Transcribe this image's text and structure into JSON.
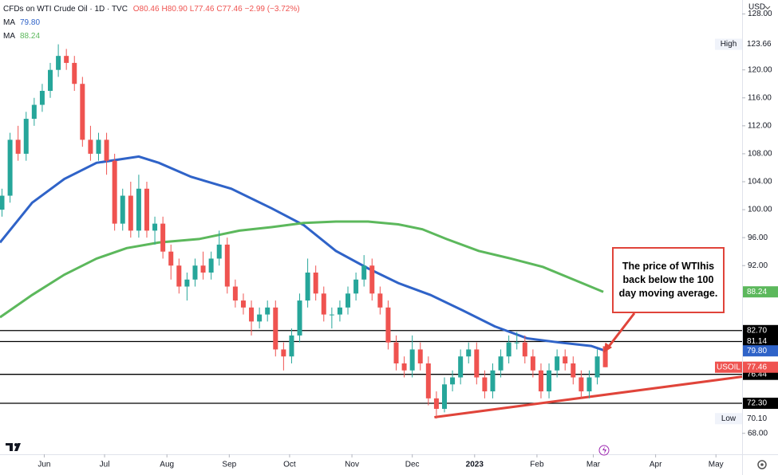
{
  "chart_data": {
    "type": "candlestick",
    "title": "CFDs on WTI Crude Oil · 1D · TVC",
    "ohlc_header": [
      "O80.46",
      "H80.90",
      "L77.46",
      "C77.46",
      "−2.99 (−3.72%)"
    ],
    "currency": "USD",
    "xlim": [
      0,
      369
    ],
    "ylim": [
      65,
      130
    ],
    "xticks": [
      {
        "value": 22,
        "label": "Jun"
      },
      {
        "value": 52,
        "label": "Jul"
      },
      {
        "value": 83,
        "label": "Aug"
      },
      {
        "value": 114,
        "label": "Sep"
      },
      {
        "value": 144,
        "label": "Oct"
      },
      {
        "value": 175,
        "label": "Nov"
      },
      {
        "value": 205,
        "label": "Dec"
      },
      {
        "value": 236,
        "label": "2023"
      },
      {
        "value": 267,
        "label": "Feb"
      },
      {
        "value": 295,
        "label": "Mar"
      },
      {
        "value": 326,
        "label": "Apr"
      },
      {
        "value": 356,
        "label": "May"
      }
    ],
    "yticks": [
      {
        "value": 68,
        "label": "68.00"
      },
      {
        "value": 92,
        "label": "92.00"
      },
      {
        "value": 96,
        "label": "96.00"
      },
      {
        "value": 100,
        "label": "100.00"
      },
      {
        "value": 104,
        "label": "104.00"
      },
      {
        "value": 108,
        "label": "108.00"
      },
      {
        "value": 112,
        "label": "112.00"
      },
      {
        "value": 116,
        "label": "116.00"
      },
      {
        "value": 120,
        "label": "120.00"
      },
      {
        "value": 128,
        "label": "128.00"
      }
    ],
    "up_color": "#26a69a",
    "down_color": "#ef5350",
    "candles": {
      "x": [
        1,
        5,
        9,
        13,
        17,
        21,
        25,
        29,
        33,
        37,
        41,
        45,
        49,
        53,
        57,
        61,
        65,
        69,
        73,
        77,
        81,
        85,
        89,
        93,
        97,
        101,
        105,
        109,
        113,
        117,
        121,
        125,
        129,
        133,
        137,
        141,
        145,
        149,
        153,
        157,
        161,
        165,
        169,
        173,
        177,
        181,
        185,
        189,
        193,
        197,
        201,
        205,
        209,
        213,
        217,
        221,
        225,
        229,
        233,
        237,
        241,
        245,
        249,
        253,
        257,
        261,
        265,
        269,
        273,
        277,
        281,
        285,
        289,
        293,
        297,
        301
      ],
      "open": [
        100,
        102,
        110,
        108,
        113,
        115,
        117,
        120,
        122,
        121,
        118,
        110,
        108,
        110,
        107,
        98,
        102,
        97,
        103,
        97,
        98,
        94,
        92,
        89,
        90,
        92,
        91,
        93,
        95,
        89,
        87,
        86,
        84,
        85,
        86,
        80,
        79,
        82,
        87,
        91,
        88,
        85,
        85,
        86,
        88,
        90,
        92,
        88,
        86,
        81,
        78,
        77,
        80,
        78,
        73,
        71.5,
        75,
        76,
        79,
        80,
        76,
        74,
        77,
        79,
        81,
        81,
        79,
        77,
        74,
        77,
        79,
        78,
        76,
        74,
        76,
        80.46
      ],
      "high": [
        103,
        111,
        112,
        114,
        116,
        118,
        121,
        123.66,
        123,
        122,
        119,
        112,
        111,
        111,
        108,
        103,
        104,
        105,
        104,
        99,
        99,
        95,
        93,
        91,
        93,
        94,
        94,
        97,
        96,
        90,
        88,
        87,
        86,
        87,
        87,
        81,
        83,
        88,
        93,
        92,
        89,
        86,
        87,
        89,
        91,
        93.5,
        93,
        89,
        87,
        82,
        79,
        82,
        81,
        79,
        74,
        76,
        77,
        80,
        81,
        81,
        77,
        78,
        80,
        82,
        82.5,
        82,
        80,
        78,
        78,
        80,
        80,
        79,
        77,
        77,
        80,
        80.9
      ],
      "low": [
        99,
        101,
        107,
        107,
        112,
        114,
        116,
        119,
        120,
        117,
        109,
        107,
        107,
        105,
        97,
        97,
        96,
        96,
        96,
        95,
        93,
        90,
        88,
        87,
        89,
        90,
        90,
        92,
        88,
        86,
        85,
        82,
        83,
        84,
        79,
        77,
        78,
        81,
        86,
        87,
        84,
        83,
        84,
        85,
        87,
        89,
        87,
        85,
        80,
        77,
        76,
        76,
        77,
        72,
        70.1,
        71,
        74,
        75,
        78,
        75,
        73,
        73,
        76,
        78,
        80,
        78,
        76,
        73,
        73,
        76,
        77,
        75,
        73,
        73,
        75,
        77.46
      ],
      "close": [
        102,
        110,
        108,
        113,
        115,
        117,
        120,
        122,
        121,
        118,
        110,
        108,
        110,
        107,
        98,
        102,
        97,
        103,
        97,
        98,
        94,
        92,
        89,
        90,
        92,
        91,
        93,
        95,
        89,
        87,
        86,
        84,
        85,
        86,
        80,
        79,
        82,
        87,
        91,
        88,
        85,
        85,
        86,
        88,
        90,
        92,
        88,
        86,
        81,
        78,
        77,
        80,
        78,
        73,
        71.5,
        75,
        76,
        79,
        80,
        76,
        74,
        77,
        79,
        81,
        81,
        79,
        77,
        74,
        77,
        79,
        78,
        76,
        74,
        76,
        79,
        77.46
      ]
    },
    "series": [
      {
        "name": "MA",
        "value_label": "79.80",
        "color": "#2f63c8",
        "x": [
          0,
          16,
          32,
          48,
          69,
          79,
          95,
          115,
          135,
          151,
          167,
          183,
          198,
          214,
          230,
          246,
          262,
          278,
          294,
          301
        ],
        "values": [
          95.3,
          101,
          104.4,
          106.7,
          107.6,
          106.7,
          104.7,
          103,
          100.2,
          97.8,
          94.1,
          91.6,
          89.5,
          87.8,
          85.6,
          83.3,
          81.6,
          81,
          80.5,
          79.8
        ]
      },
      {
        "name": "MA",
        "value_label": "88.24",
        "color": "#5cb85c",
        "x": [
          0,
          16,
          32,
          48,
          63,
          79,
          99,
          119,
          135,
          151,
          167,
          183,
          198,
          210,
          222,
          238,
          254,
          270,
          286,
          300
        ],
        "values": [
          84.6,
          87.8,
          90.7,
          93,
          94.5,
          95.3,
          95.8,
          97,
          97.5,
          98.1,
          98.3,
          98.3,
          97.9,
          97.2,
          95.8,
          94.1,
          93,
          91.8,
          89.9,
          88.24
        ]
      }
    ],
    "levels": [
      {
        "value": 82.7,
        "label": "82.70"
      },
      {
        "value": 81.14,
        "label": "81.14"
      },
      {
        "value": 76.44,
        "label": "76.44"
      },
      {
        "value": 72.3,
        "label": "72.30"
      }
    ],
    "level_color": "#000000",
    "price_tags": [
      {
        "value": 79.8,
        "label": "79.80",
        "color": "#2f63c8"
      },
      {
        "value": 88.24,
        "label": "88.24",
        "color": "#5cb85c"
      },
      {
        "value": 77.46,
        "label": "77.46",
        "name": "USOIL",
        "color": "#ef5350"
      },
      {
        "value": 123.66,
        "label": "123.66",
        "name": "High"
      },
      {
        "value": 70.1,
        "label": "70.10",
        "name": "Low"
      }
    ],
    "trendline": {
      "x": [
        216,
        369
      ],
      "values": [
        70.3,
        76.1
      ],
      "color": "#e0443a"
    },
    "annotation": "The price of WTIhis back below the 100 day moving average."
  }
}
